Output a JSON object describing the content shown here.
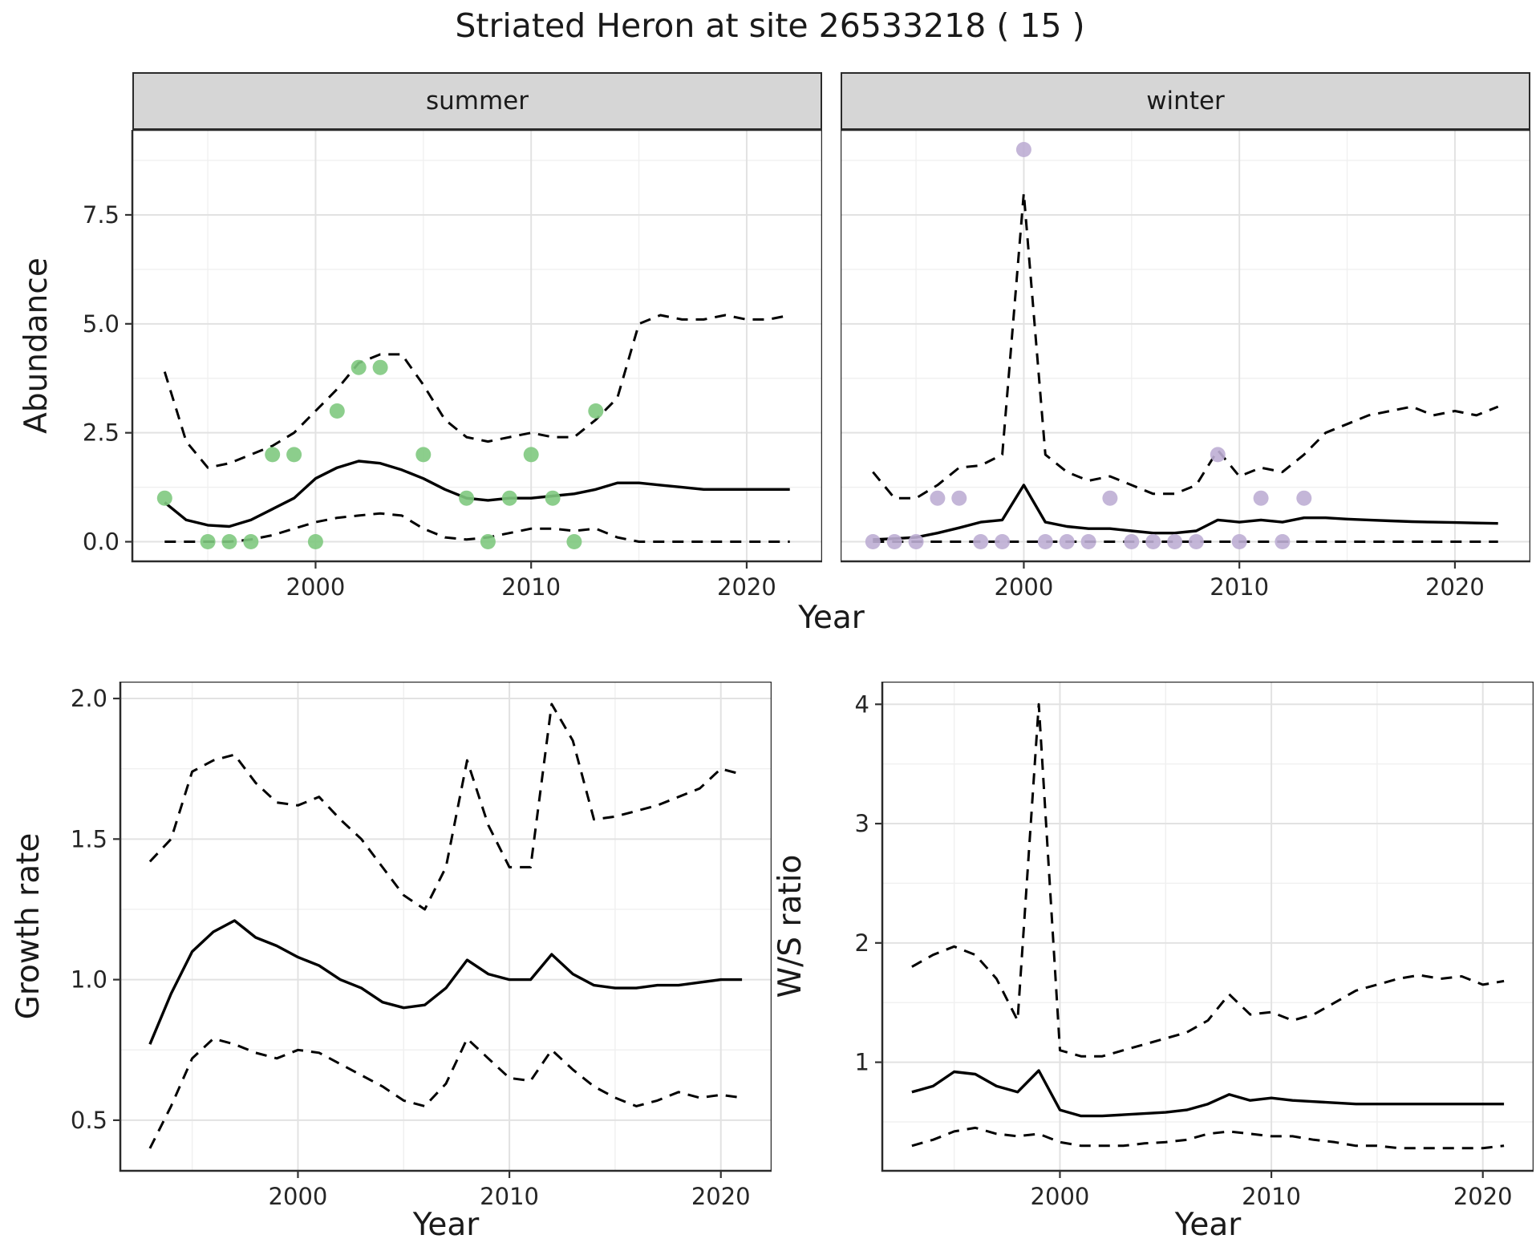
{
  "title": "Striated Heron at site 26533218 ( 15 )",
  "top": {
    "ylabel": "Abundance",
    "xlabel": "Year"
  },
  "bottom_left": {
    "ylabel": "Growth rate",
    "xlabel": "Year"
  },
  "bottom_right": {
    "ylabel": "W/S ratio",
    "xlabel": "Year"
  },
  "colors": {
    "line": "#000000",
    "summer_points": "#7FC97F",
    "winter_points": "#BEAED4",
    "strip_background": "#D6D6D6",
    "panel_border": "#2B2B2B",
    "grid_major": "#E2E2E2",
    "grid_minor": "#F0F0F0",
    "background": "#FFFFFF"
  },
  "chart_data": [
    {
      "type": "line",
      "facet": "summer",
      "xlabel": "Year",
      "ylabel": "Abundance",
      "xlim": [
        1991.5,
        2023.5
      ],
      "ylim": [
        -0.45,
        9.45
      ],
      "xticks": [
        2000,
        2010,
        2020
      ],
      "xtick_labels": [
        "2000",
        "2010",
        "2020"
      ],
      "yticks": [
        0.0,
        2.5,
        5.0,
        7.5
      ],
      "ytick_labels": [
        "0.0",
        "2.5",
        "5.0",
        "7.5"
      ],
      "series": [
        {
          "name": "upper-ci",
          "style": "dashed",
          "x": [
            1993,
            1994,
            1995,
            1996,
            1997,
            1998,
            1999,
            2000,
            2001,
            2002,
            2003,
            2004,
            2005,
            2006,
            2007,
            2008,
            2009,
            2010,
            2011,
            2012,
            2013,
            2014,
            2015,
            2016,
            2017,
            2018,
            2019,
            2020,
            2021,
            2022
          ],
          "y": [
            3.9,
            2.3,
            1.7,
            1.8,
            2.0,
            2.2,
            2.5,
            3.0,
            3.5,
            4.1,
            4.3,
            4.3,
            3.6,
            2.8,
            2.4,
            2.3,
            2.4,
            2.5,
            2.4,
            2.4,
            2.8,
            3.3,
            5.0,
            5.2,
            5.1,
            5.1,
            5.2,
            5.1,
            5.1,
            5.2
          ]
        },
        {
          "name": "lower-ci",
          "style": "dashed",
          "x": [
            1993,
            1994,
            1995,
            1996,
            1997,
            1998,
            1999,
            2000,
            2001,
            2002,
            2003,
            2004,
            2005,
            2006,
            2007,
            2008,
            2009,
            2010,
            2011,
            2012,
            2013,
            2014,
            2015,
            2016,
            2017,
            2018,
            2019,
            2020,
            2021,
            2022
          ],
          "y": [
            0,
            0,
            0,
            0,
            0.05,
            0.15,
            0.3,
            0.45,
            0.55,
            0.6,
            0.65,
            0.6,
            0.3,
            0.1,
            0.05,
            0.1,
            0.2,
            0.3,
            0.3,
            0.25,
            0.3,
            0.1,
            0,
            0,
            0,
            0,
            0,
            0,
            0,
            0
          ]
        },
        {
          "name": "fit",
          "style": "solid",
          "x": [
            1993,
            1994,
            1995,
            1996,
            1997,
            1998,
            1999,
            2000,
            2001,
            2002,
            2003,
            2004,
            2005,
            2006,
            2007,
            2008,
            2009,
            2010,
            2011,
            2012,
            2013,
            2014,
            2015,
            2016,
            2017,
            2018,
            2019,
            2020,
            2021,
            2022
          ],
          "y": [
            0.9,
            0.5,
            0.38,
            0.35,
            0.5,
            0.75,
            1.0,
            1.45,
            1.7,
            1.85,
            1.8,
            1.65,
            1.45,
            1.2,
            1.0,
            0.95,
            1.0,
            1.0,
            1.05,
            1.1,
            1.2,
            1.35,
            1.35,
            1.3,
            1.25,
            1.2,
            1.2,
            1.2,
            1.2,
            1.2
          ]
        },
        {
          "name": "observations",
          "style": "points",
          "color": "#7FC97F",
          "x": [
            1993,
            1995,
            1996,
            1997,
            1998,
            1999,
            2000,
            2001,
            2002,
            2003,
            2005,
            2007,
            2008,
            2009,
            2010,
            2011,
            2012,
            2013
          ],
          "y": [
            1,
            0,
            0,
            0,
            2,
            2,
            0,
            3,
            4,
            4,
            2,
            1,
            0,
            1,
            2,
            1,
            0,
            3
          ]
        }
      ]
    },
    {
      "type": "line",
      "facet": "winter",
      "xlabel": "Year",
      "ylabel": "Abundance",
      "xlim": [
        1991.5,
        2023.5
      ],
      "ylim": [
        -0.45,
        9.45
      ],
      "xticks": [
        2000,
        2010,
        2020
      ],
      "xtick_labels": [
        "2000",
        "2010",
        "2020"
      ],
      "yticks": [
        0.0,
        2.5,
        5.0,
        7.5
      ],
      "ytick_labels": [
        "0.0",
        "2.5",
        "5.0",
        "7.5"
      ],
      "series": [
        {
          "name": "upper-ci",
          "style": "dashed",
          "x": [
            1993,
            1994,
            1995,
            1996,
            1997,
            1998,
            1999,
            2000,
            2001,
            2002,
            2003,
            2004,
            2005,
            2006,
            2007,
            2008,
            2009,
            2010,
            2011,
            2012,
            2013,
            2014,
            2015,
            2016,
            2017,
            2018,
            2019,
            2020,
            2021,
            2022
          ],
          "y": [
            1.6,
            1.0,
            1.0,
            1.3,
            1.7,
            1.75,
            2.0,
            8.0,
            2.0,
            1.6,
            1.4,
            1.5,
            1.3,
            1.1,
            1.1,
            1.3,
            2.1,
            1.5,
            1.7,
            1.6,
            2.0,
            2.5,
            2.7,
            2.9,
            3.0,
            3.1,
            2.9,
            3.0,
            2.9,
            3.1
          ]
        },
        {
          "name": "lower-ci",
          "style": "dashed",
          "x": [
            1993,
            1994,
            1995,
            1996,
            1997,
            1998,
            1999,
            2000,
            2001,
            2002,
            2003,
            2004,
            2005,
            2006,
            2007,
            2008,
            2009,
            2010,
            2011,
            2012,
            2013,
            2014,
            2015,
            2016,
            2017,
            2018,
            2019,
            2020,
            2021,
            2022
          ],
          "y": [
            0,
            0,
            0,
            0,
            0,
            0,
            0,
            0,
            0,
            0,
            0,
            0,
            0,
            0,
            0,
            0,
            0,
            0,
            0,
            0,
            0,
            0,
            0,
            0,
            0,
            0,
            0,
            0,
            0,
            0
          ]
        },
        {
          "name": "fit",
          "style": "solid",
          "x": [
            1993,
            1994,
            1995,
            1996,
            1997,
            1998,
            1999,
            2000,
            2001,
            2002,
            2003,
            2004,
            2005,
            2006,
            2007,
            2008,
            2009,
            2010,
            2011,
            2012,
            2013,
            2014,
            2015,
            2016,
            2017,
            2018,
            2019,
            2020,
            2021,
            2022
          ],
          "y": [
            0.05,
            0.07,
            0.1,
            0.2,
            0.32,
            0.45,
            0.5,
            1.3,
            0.45,
            0.35,
            0.3,
            0.3,
            0.25,
            0.2,
            0.2,
            0.25,
            0.5,
            0.45,
            0.5,
            0.45,
            0.55,
            0.55,
            0.52,
            0.5,
            0.48,
            0.46,
            0.45,
            0.44,
            0.43,
            0.42
          ]
        },
        {
          "name": "observations",
          "style": "points",
          "color": "#BEAED4",
          "x": [
            1993,
            1994,
            1995,
            1996,
            1997,
            1998,
            1999,
            2000,
            2001,
            2002,
            2003,
            2004,
            2005,
            2006,
            2007,
            2008,
            2009,
            2010,
            2011,
            2012,
            2013
          ],
          "y": [
            0,
            0,
            0,
            1,
            1,
            0,
            0,
            9,
            0,
            0,
            0,
            1,
            0,
            0,
            0,
            0,
            2,
            0,
            1,
            0,
            1
          ]
        }
      ]
    },
    {
      "type": "line",
      "xlabel": "Year",
      "ylabel": "Growth rate",
      "xlim": [
        1991.6,
        2022.4
      ],
      "ylim": [
        0.32,
        2.06
      ],
      "xticks": [
        2000,
        2010,
        2020
      ],
      "xtick_labels": [
        "2000",
        "2010",
        "2020"
      ],
      "yticks": [
        0.5,
        1.0,
        1.5,
        2.0
      ],
      "ytick_labels": [
        "0.5",
        "1.0",
        "1.5",
        "2.0"
      ],
      "series": [
        {
          "name": "upper-ci",
          "style": "dashed",
          "x": [
            1993,
            1994,
            1995,
            1996,
            1997,
            1998,
            1999,
            2000,
            2001,
            2002,
            2003,
            2004,
            2005,
            2006,
            2007,
            2008,
            2009,
            2010,
            2011,
            2012,
            2013,
            2014,
            2015,
            2016,
            2017,
            2018,
            2019,
            2020,
            2021
          ],
          "y": [
            1.42,
            1.5,
            1.74,
            1.78,
            1.8,
            1.7,
            1.63,
            1.62,
            1.65,
            1.57,
            1.5,
            1.4,
            1.3,
            1.25,
            1.4,
            1.78,
            1.55,
            1.4,
            1.4,
            1.98,
            1.85,
            1.57,
            1.58,
            1.6,
            1.62,
            1.65,
            1.68,
            1.75,
            1.73
          ]
        },
        {
          "name": "lower-ci",
          "style": "dashed",
          "x": [
            1993,
            1994,
            1995,
            1996,
            1997,
            1998,
            1999,
            2000,
            2001,
            2002,
            2003,
            2004,
            2005,
            2006,
            2007,
            2008,
            2009,
            2010,
            2011,
            2012,
            2013,
            2014,
            2015,
            2016,
            2017,
            2018,
            2019,
            2020,
            2021
          ],
          "y": [
            0.4,
            0.55,
            0.72,
            0.79,
            0.77,
            0.74,
            0.72,
            0.75,
            0.74,
            0.7,
            0.66,
            0.62,
            0.57,
            0.55,
            0.63,
            0.79,
            0.72,
            0.65,
            0.64,
            0.75,
            0.68,
            0.62,
            0.58,
            0.55,
            0.57,
            0.6,
            0.58,
            0.59,
            0.58
          ]
        },
        {
          "name": "fit",
          "style": "solid",
          "x": [
            1993,
            1994,
            1995,
            1996,
            1997,
            1998,
            1999,
            2000,
            2001,
            2002,
            2003,
            2004,
            2005,
            2006,
            2007,
            2008,
            2009,
            2010,
            2011,
            2012,
            2013,
            2014,
            2015,
            2016,
            2017,
            2018,
            2019,
            2020,
            2021
          ],
          "y": [
            0.77,
            0.95,
            1.1,
            1.17,
            1.21,
            1.15,
            1.12,
            1.08,
            1.05,
            1.0,
            0.97,
            0.92,
            0.9,
            0.91,
            0.97,
            1.07,
            1.02,
            1.0,
            1.0,
            1.09,
            1.02,
            0.98,
            0.97,
            0.97,
            0.98,
            0.98,
            0.99,
            1.0,
            1.0
          ]
        }
      ]
    },
    {
      "type": "line",
      "xlabel": "Year",
      "ylabel": "W/S ratio",
      "xlim": [
        1991.6,
        2022.4
      ],
      "ylim": [
        0.09,
        4.19
      ],
      "xticks": [
        2000,
        2010,
        2020
      ],
      "xtick_labels": [
        "2000",
        "2010",
        "2020"
      ],
      "yticks": [
        1,
        2,
        3,
        4
      ],
      "ytick_labels": [
        "1",
        "2",
        "3",
        "4"
      ],
      "series": [
        {
          "name": "upper-ci",
          "style": "dashed",
          "x": [
            1993,
            1994,
            1995,
            1996,
            1997,
            1998,
            1999,
            2000,
            2001,
            2002,
            2003,
            2004,
            2005,
            2006,
            2007,
            2008,
            2009,
            2010,
            2011,
            2012,
            2013,
            2014,
            2015,
            2016,
            2017,
            2018,
            2019,
            2020,
            2021
          ],
          "y": [
            1.8,
            1.9,
            1.97,
            1.9,
            1.7,
            1.35,
            4.0,
            1.1,
            1.05,
            1.05,
            1.1,
            1.15,
            1.2,
            1.25,
            1.35,
            1.57,
            1.4,
            1.42,
            1.35,
            1.4,
            1.5,
            1.6,
            1.65,
            1.7,
            1.73,
            1.7,
            1.72,
            1.65,
            1.68
          ]
        },
        {
          "name": "lower-ci",
          "style": "dashed",
          "x": [
            1993,
            1994,
            1995,
            1996,
            1997,
            1998,
            1999,
            2000,
            2001,
            2002,
            2003,
            2004,
            2005,
            2006,
            2007,
            2008,
            2009,
            2010,
            2011,
            2012,
            2013,
            2014,
            2015,
            2016,
            2017,
            2018,
            2019,
            2020,
            2021
          ],
          "y": [
            0.3,
            0.35,
            0.42,
            0.45,
            0.4,
            0.38,
            0.4,
            0.33,
            0.3,
            0.3,
            0.3,
            0.32,
            0.33,
            0.35,
            0.4,
            0.42,
            0.4,
            0.38,
            0.38,
            0.35,
            0.33,
            0.3,
            0.3,
            0.28,
            0.28,
            0.28,
            0.28,
            0.28,
            0.3
          ]
        },
        {
          "name": "fit",
          "style": "solid",
          "x": [
            1993,
            1994,
            1995,
            1996,
            1997,
            1998,
            1999,
            2000,
            2001,
            2002,
            2003,
            2004,
            2005,
            2006,
            2007,
            2008,
            2009,
            2010,
            2011,
            2012,
            2013,
            2014,
            2015,
            2016,
            2017,
            2018,
            2019,
            2020,
            2021
          ],
          "y": [
            0.75,
            0.8,
            0.92,
            0.9,
            0.8,
            0.75,
            0.93,
            0.6,
            0.55,
            0.55,
            0.56,
            0.57,
            0.58,
            0.6,
            0.65,
            0.73,
            0.68,
            0.7,
            0.68,
            0.67,
            0.66,
            0.65,
            0.65,
            0.65,
            0.65,
            0.65,
            0.65,
            0.65,
            0.65
          ]
        }
      ]
    }
  ]
}
